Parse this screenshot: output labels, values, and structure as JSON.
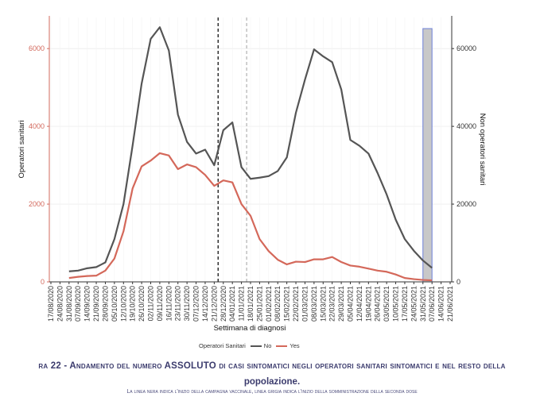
{
  "chart_data": {
    "type": "line",
    "xlabel": "Settimana di diagnosi",
    "ylabel_left": "Operatori sanitari",
    "ylabel_right": "Non operatori sanitari",
    "ylim_left": [
      0,
      6800
    ],
    "ylim_right": [
      0,
      68000
    ],
    "yticks_left": [
      0,
      2000,
      4000,
      6000
    ],
    "yticks_right": [
      0,
      20000,
      40000,
      60000
    ],
    "x": [
      "17/08/2020",
      "24/08/2020",
      "31/08/2020",
      "07/09/2020",
      "14/09/2020",
      "21/09/2020",
      "28/09/2020",
      "05/10/2020",
      "12/10/2020",
      "19/10/2020",
      "26/10/2020",
      "02/11/2020",
      "09/11/2020",
      "16/11/2020",
      "23/11/2020",
      "30/11/2020",
      "07/12/2020",
      "14/12/2020",
      "21/12/2020",
      "28/12/2020",
      "04/01/2021",
      "11/01/2021",
      "18/01/2021",
      "25/01/2021",
      "01/02/2021",
      "08/02/2021",
      "15/02/2021",
      "22/02/2021",
      "01/03/2021",
      "08/03/2021",
      "15/03/2021",
      "22/03/2021",
      "29/03/2021",
      "05/04/2021",
      "12/04/2021",
      "19/04/2021",
      "26/04/2021",
      "03/05/2021",
      "10/05/2021",
      "17/05/2021",
      "24/05/2021",
      "31/05/2021",
      "07/06/2021",
      "14/06/2021",
      "21/06/2021"
    ],
    "tick_labels": [
      "17/08/2020",
      "24/08/2020",
      "31/08/2020",
      "07/09/2020",
      "14/09/2020",
      "21/09/2020",
      "28/09/2020",
      "05/10/2020",
      "12/10/2020",
      "19/10/2020",
      "26/10/2020",
      "02/11/2020",
      "09/11/2020",
      "16/11/2020",
      "23/11/2020",
      "30/11/2020",
      "07/12/2020",
      "14/12/2020",
      "21/12/2020",
      "28/12/2020",
      "04/01/2021",
      "11/01/2021",
      "18/01/2021",
      "25/01/2021",
      "01/02/2021",
      "08/02/2021",
      "15/02/2021",
      "22/02/2021",
      "01/03/2021",
      "08/03/2021",
      "15/03/2021",
      "22/03/2021",
      "29/03/2021",
      "05/04/2021",
      "12/04/2021",
      "19/04/2021",
      "26/04/2021",
      "03/05/2021",
      "10/05/2021",
      "17/05/2021",
      "24/05/2021",
      "31/05/2021",
      "07/06/2021",
      "14/06/2021",
      "21/06/2021"
    ],
    "series": [
      {
        "name": "No",
        "axis": "right",
        "color": "#555555",
        "values": [
          null,
          null,
          2700,
          2900,
          3500,
          3800,
          5000,
          11000,
          20000,
          35000,
          51000,
          62500,
          65500,
          59500,
          43000,
          36000,
          33000,
          34000,
          30000,
          39000,
          41000,
          29500,
          26500,
          26800,
          27200,
          28500,
          32000,
          43500,
          52000,
          59800,
          58000,
          56500,
          49500,
          36500,
          35000,
          33000,
          28000,
          22500,
          16000,
          11000,
          8000,
          5500,
          3600,
          null,
          null
        ]
      },
      {
        "name": "Yes",
        "axis": "left",
        "color": "#d4685a",
        "values": [
          null,
          null,
          100,
          130,
          150,
          160,
          290,
          600,
          1300,
          2400,
          2970,
          3120,
          3310,
          3250,
          2900,
          3020,
          2950,
          2750,
          2470,
          2610,
          2560,
          2000,
          1700,
          1100,
          790,
          570,
          450,
          520,
          510,
          580,
          580,
          640,
          510,
          420,
          390,
          340,
          290,
          260,
          190,
          100,
          70,
          50,
          40,
          null,
          null
        ]
      }
    ],
    "reference_lines": [
      {
        "x": "24/12/2020",
        "color": "#222222",
        "style": "dashed"
      },
      {
        "x": "15/01/2021",
        "color": "#aaaaaa",
        "style": "dashed"
      }
    ],
    "shaded_region": {
      "x_start": "31/05/2021",
      "x_end": "07/06/2021",
      "fill": "#c8c8c8",
      "stroke": "#6c7fd8"
    },
    "legend": {
      "title": "Operatori Sanitari",
      "placement": "bottom",
      "entries": [
        "No",
        "Yes"
      ]
    },
    "grid": true
  },
  "caption": {
    "line1": "ra 22 - Andamento del numero ASSOLUTO di casi sintomatici negli operatori sanitari sintomatici e nel resto della",
    "line2": "popolazione.",
    "line3": "La linea nera indica l'inizio della campagna vaccinale, linea grigia indica l'inizio della somministrazione della seconda dose"
  }
}
